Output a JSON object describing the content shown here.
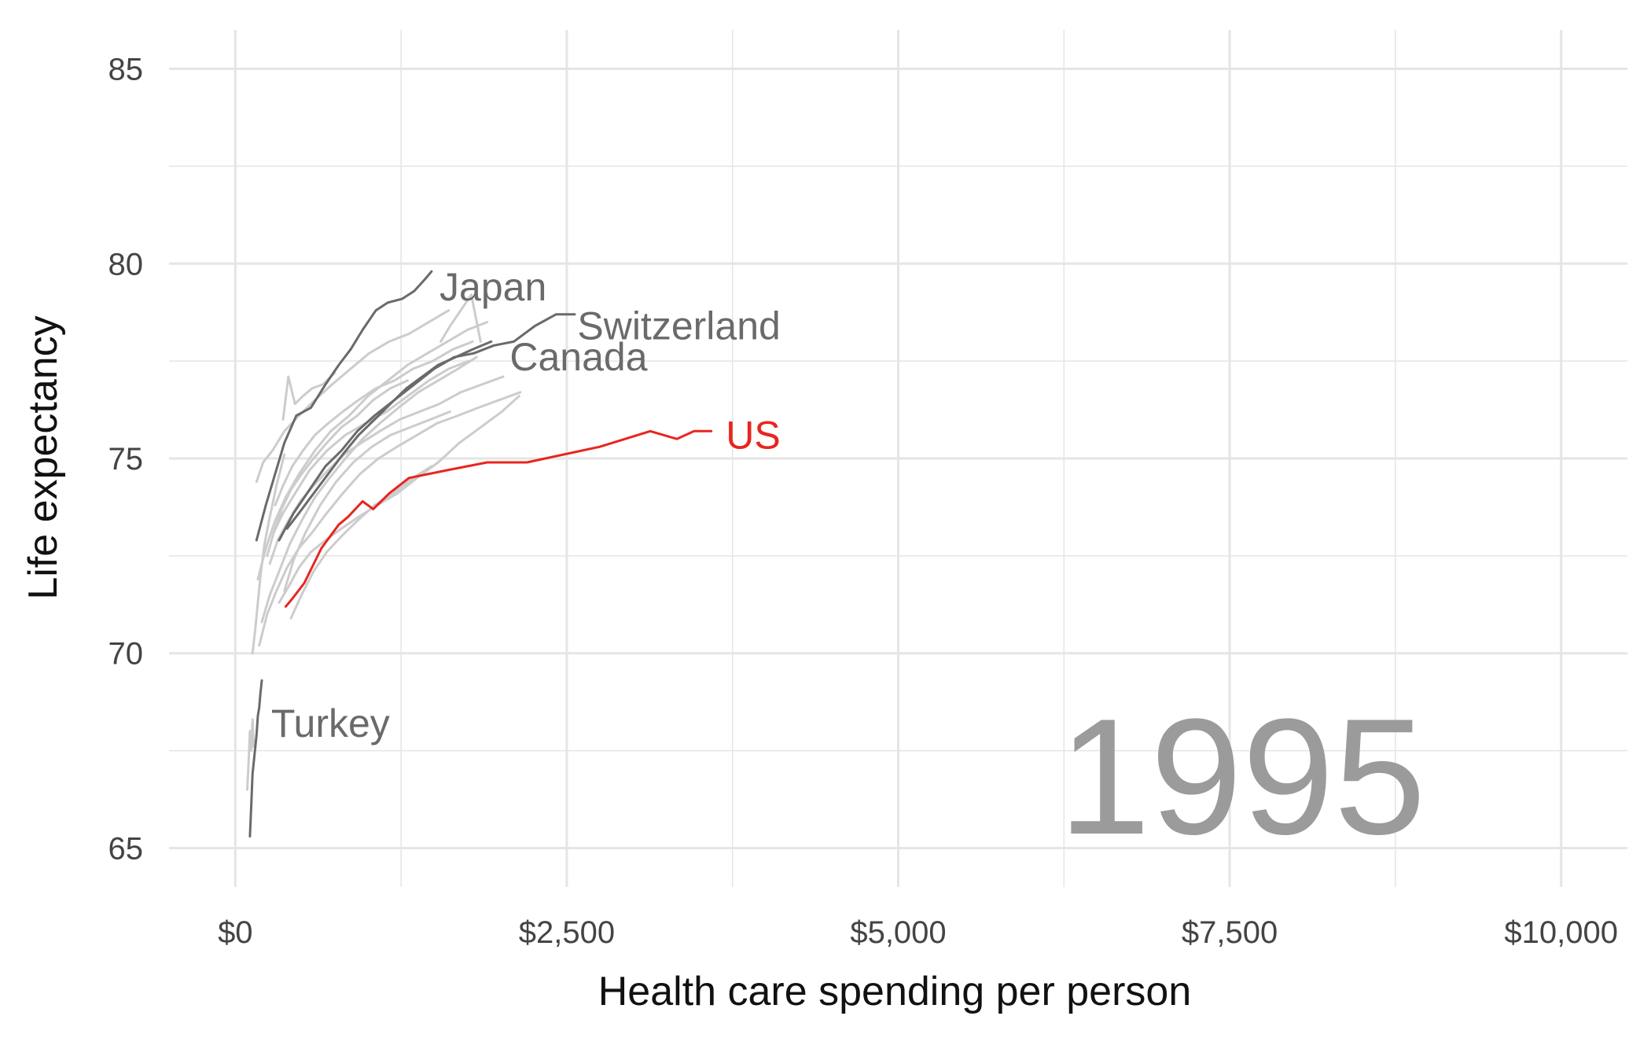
{
  "chart_data": {
    "type": "line",
    "xlabel": "Health care spending per person",
    "ylabel": "Life expectancy",
    "xlim": [
      -500,
      10500
    ],
    "ylim": [
      64,
      86
    ],
    "x_ticks": [
      0,
      2500,
      5000,
      7500,
      10000
    ],
    "x_tick_labels": [
      "$0",
      "$2,500",
      "$5,000",
      "$7,500",
      "$10,000"
    ],
    "x_minor_ticks": [
      1250,
      3750,
      6250,
      8750
    ],
    "y_ticks": [
      65,
      70,
      75,
      80,
      85
    ],
    "y_tick_labels": [
      "65",
      "70",
      "75",
      "80",
      "85"
    ],
    "y_minor_ticks": [
      67.5,
      72.5,
      77.5,
      82.5
    ],
    "grid": true,
    "year_label": "1995",
    "colors": {
      "highlight": "#e8251f",
      "labeled": "#6a6a6a",
      "background": "#cccccc",
      "grid": "#e5e5e5"
    },
    "series": [
      {
        "name": "US",
        "style": "highlight",
        "label_at": [
          3700,
          75.6
        ],
        "x": [
          380,
          430,
          520,
          650,
          780,
          850,
          960,
          1040,
          1160,
          1310,
          1600,
          1900,
          2200,
          2750,
          3130,
          3330,
          3460,
          3590
        ],
        "y": [
          71.2,
          71.4,
          71.8,
          72.7,
          73.3,
          73.5,
          73.9,
          73.7,
          74.1,
          74.5,
          74.7,
          74.9,
          74.9,
          75.3,
          75.7,
          75.5,
          75.7,
          75.7
        ]
      },
      {
        "name": "Japan",
        "style": "labeled",
        "label_at": [
          1540,
          79.4
        ],
        "x": [
          160,
          230,
          300,
          370,
          460,
          570,
          680,
          780,
          870,
          960,
          1060,
          1150,
          1260,
          1350,
          1430,
          1480
        ],
        "y": [
          72.9,
          73.8,
          74.6,
          75.4,
          76.1,
          76.3,
          76.9,
          77.4,
          77.8,
          78.3,
          78.8,
          79.0,
          79.1,
          79.3,
          79.6,
          79.8
        ]
      },
      {
        "name": "Switzerland",
        "style": "labeled",
        "label_at": [
          2580,
          78.4
        ],
        "x": [
          330,
          440,
          560,
          680,
          800,
          920,
          1050,
          1200,
          1350,
          1500,
          1650,
          1800,
          1950,
          2100,
          2260,
          2420,
          2560
        ],
        "y": [
          72.9,
          73.6,
          74.2,
          74.8,
          75.2,
          75.7,
          76.1,
          76.5,
          76.9,
          77.3,
          77.6,
          77.7,
          77.9,
          78.0,
          78.4,
          78.7,
          78.7
        ]
      },
      {
        "name": "Canada",
        "style": "labeled",
        "label_at": [
          2070,
          77.6
        ],
        "x": [
          390,
          480,
          590,
          700,
          810,
          930,
          1050,
          1170,
          1290,
          1410,
          1530,
          1660,
          1790,
          1930
        ],
        "y": [
          73.2,
          73.6,
          74.1,
          74.6,
          75.1,
          75.6,
          76.0,
          76.4,
          76.8,
          77.1,
          77.4,
          77.6,
          77.8,
          78.0
        ]
      },
      {
        "name": "Turkey",
        "style": "labeled",
        "label_at": [
          270,
          68.2
        ],
        "x": [
          110,
          120,
          130,
          160,
          170,
          180,
          185,
          190,
          200
        ],
        "y": [
          65.3,
          66.1,
          66.9,
          67.9,
          68.4,
          68.6,
          68.8,
          69.0,
          69.3
        ]
      },
      {
        "x": [
          170,
          200,
          240,
          300,
          380,
          480,
          600,
          720,
          860,
          1000,
          1150,
          1300,
          1450,
          1600,
          1750,
          1900
        ],
        "y": [
          71.9,
          72.3,
          72.8,
          73.4,
          74.0,
          74.6,
          75.2,
          75.7,
          76.1,
          76.6,
          77.0,
          77.4,
          77.7,
          78.0,
          78.3,
          78.5
        ]
      },
      {
        "x": [
          160,
          210,
          280,
          370,
          480,
          600,
          730,
          870,
          1010,
          1160,
          1310,
          1460,
          1610
        ],
        "y": [
          74.4,
          74.9,
          75.2,
          75.7,
          76.1,
          76.5,
          76.9,
          77.3,
          77.7,
          78.0,
          78.2,
          78.5,
          78.8
        ]
      },
      {
        "x": [
          200,
          260,
          330,
          410,
          500,
          600,
          710,
          830,
          960,
          1090,
          1230,
          1380,
          1530,
          1680,
          1820
        ],
        "y": [
          70.8,
          71.5,
          72.1,
          72.8,
          73.4,
          74.0,
          74.5,
          75.0,
          75.5,
          75.9,
          76.3,
          76.7,
          77.0,
          77.3,
          77.6
        ]
      },
      {
        "x": [
          180,
          240,
          310,
          390,
          480,
          580,
          690,
          810,
          940,
          1080,
          1220,
          1370,
          1520,
          1680,
          1830,
          1990,
          2150
        ],
        "y": [
          70.2,
          71.0,
          71.6,
          72.2,
          72.7,
          73.1,
          73.6,
          74.1,
          74.6,
          75.0,
          75.3,
          75.6,
          75.9,
          76.1,
          76.3,
          76.5,
          76.7
        ]
      },
      {
        "x": [
          330,
          400,
          480,
          570,
          680,
          800,
          930,
          1070,
          1220,
          1370,
          1530,
          1690,
          1850,
          2010,
          2140
        ],
        "y": [
          71.3,
          71.7,
          72.2,
          72.6,
          72.9,
          73.2,
          73.5,
          73.8,
          74.1,
          74.5,
          74.9,
          75.4,
          75.8,
          76.2,
          76.6
        ]
      },
      {
        "x": [
          290,
          360,
          450,
          560,
          690,
          830,
          980,
          1140,
          1300,
          1460,
          1610,
          1760
        ],
        "y": [
          73.1,
          73.6,
          74.1,
          74.7,
          75.2,
          75.6,
          75.9,
          76.2,
          76.6,
          77.0,
          77.3,
          77.5
        ]
      },
      {
        "x": [
          370,
          440,
          530,
          640,
          760,
          890,
          1030,
          1170,
          1320,
          1470,
          1620
        ],
        "y": [
          71.6,
          72.4,
          73.1,
          73.8,
          74.4,
          74.9,
          75.3,
          75.6,
          75.8,
          76.0,
          76.2
        ]
      },
      {
        "x": [
          260,
          320,
          400,
          490,
          590,
          700,
          820,
          950,
          1090,
          1240,
          1390,
          1540,
          1700,
          1860,
          2020
        ],
        "y": [
          72.3,
          72.9,
          73.4,
          73.9,
          74.3,
          74.7,
          75.1,
          75.4,
          75.7,
          76.0,
          76.2,
          76.4,
          76.7,
          76.9,
          77.1
        ]
      },
      {
        "x": [
          420,
          500,
          590,
          690,
          800,
          920,
          1050,
          1190,
          1340,
          1480
        ],
        "y": [
          70.9,
          71.5,
          72.1,
          72.6,
          73.0,
          73.4,
          73.8,
          74.1,
          74.5,
          74.8
        ]
      },
      {
        "x": [
          240,
          290,
          350,
          420,
          500,
          590,
          690,
          800,
          920,
          1040,
          1170,
          1300
        ],
        "y": [
          72.5,
          73.1,
          73.7,
          74.2,
          74.6,
          75.0,
          75.4,
          75.8,
          76.1,
          76.5,
          76.8,
          77.0
        ]
      },
      {
        "x": [
          300,
          360,
          430,
          510,
          600,
          700,
          810,
          930,
          1060,
          1200,
          1340,
          1490,
          1640,
          1790
        ],
        "y": [
          73.8,
          74.3,
          74.8,
          75.2,
          75.6,
          75.9,
          76.2,
          76.5,
          76.8,
          77.0,
          77.3,
          77.5,
          77.8,
          78.0
        ]
      },
      {
        "x": [
          1550,
          1620,
          1700,
          1780,
          1850
        ],
        "y": [
          78.0,
          78.4,
          78.8,
          79.2,
          78.0
        ]
      },
      {
        "x": [
          90,
          100,
          110,
          120,
          130,
          140
        ],
        "y": [
          66.5,
          67.2,
          68.0,
          67.5,
          68.3,
          67.6
        ]
      },
      {
        "x": [
          130,
          150,
          170,
          190,
          220,
          260,
          310,
          370
        ],
        "y": [
          70.0,
          70.6,
          71.3,
          72.0,
          72.8,
          73.5,
          74.3,
          75.1
        ]
      },
      {
        "x": [
          360,
          400,
          450,
          510,
          580,
          660,
          750
        ],
        "y": [
          76.0,
          77.1,
          76.4,
          76.6,
          76.8,
          76.9,
          77.2
        ]
      }
    ]
  }
}
